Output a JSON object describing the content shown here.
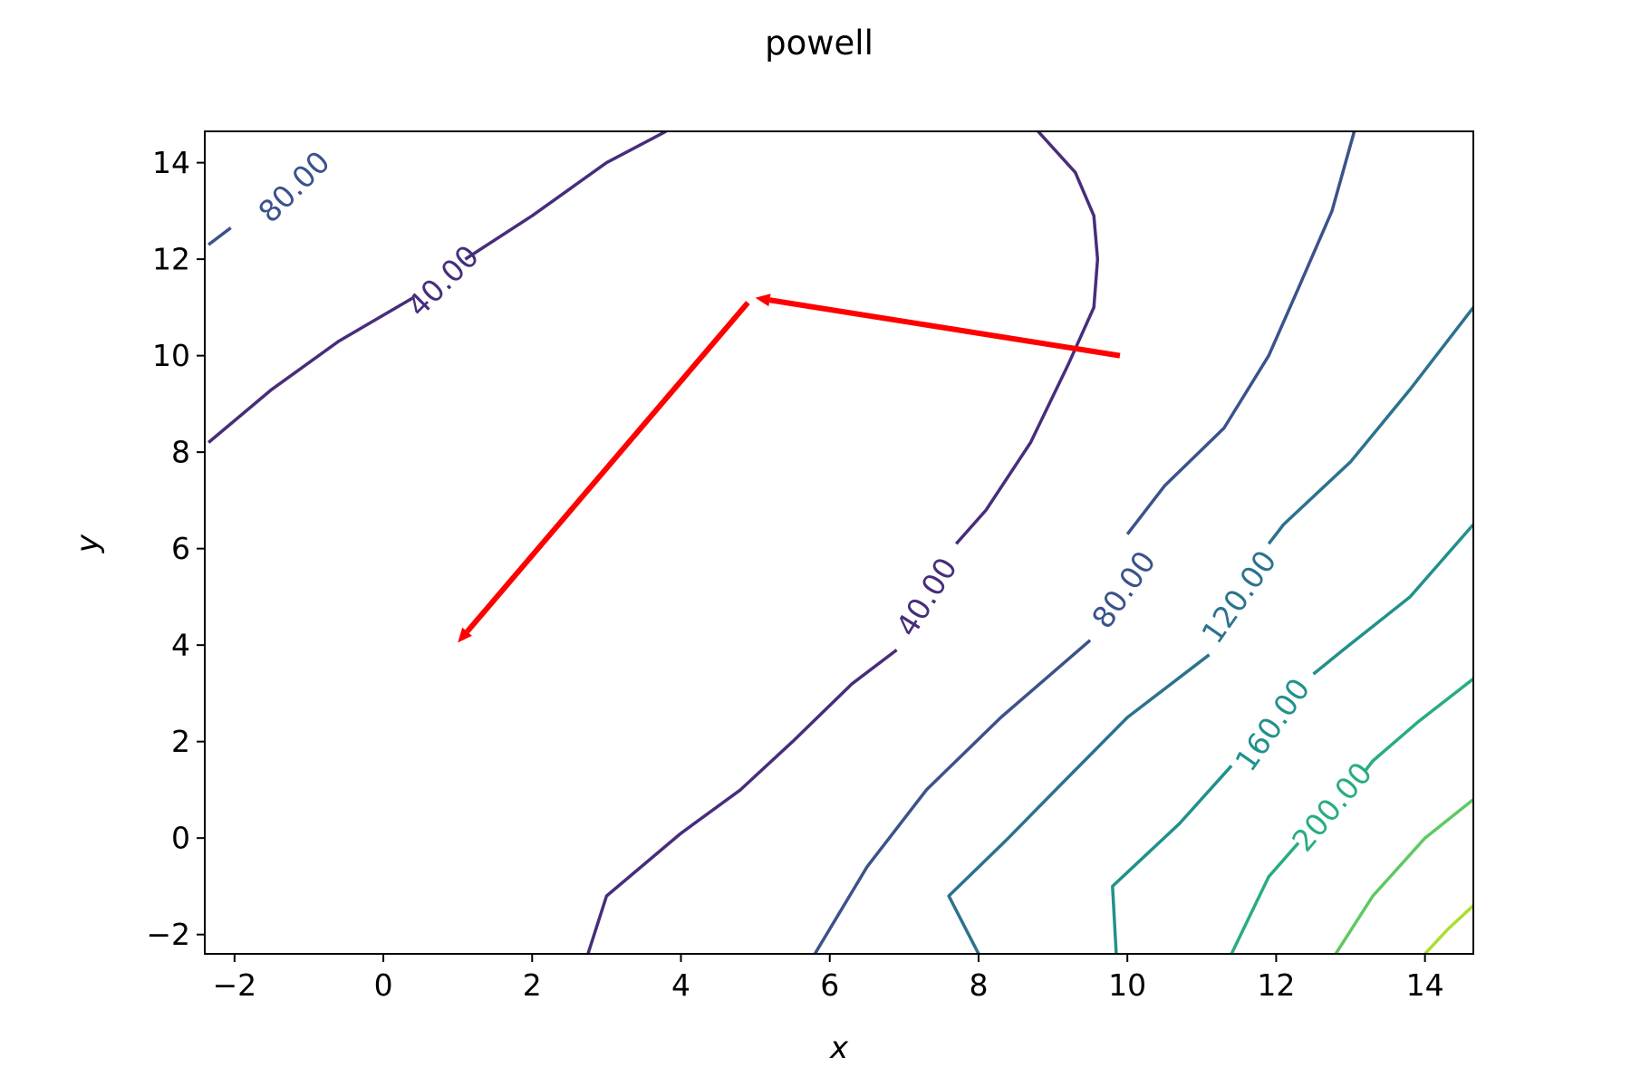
{
  "chart_data": {
    "type": "contour",
    "title": "powell",
    "xlabel": "x",
    "ylabel": "y",
    "xlim": [
      -2.4,
      14.65
    ],
    "ylim": [
      -2.4,
      14.65
    ],
    "xticks": [
      -2,
      0,
      2,
      4,
      6,
      8,
      10,
      12,
      14
    ],
    "yticks": [
      -2,
      0,
      2,
      4,
      6,
      8,
      10,
      12,
      14
    ],
    "colors": {
      "axis": "#000000",
      "arrow": "#ff0000",
      "background": "#ffffff"
    },
    "contours": [
      {
        "level": "40.00",
        "color": "#472d7b",
        "segments": [
          [
            [
              -2.35,
              8.2
            ],
            [
              -1.5,
              9.3
            ],
            [
              -0.6,
              10.3
            ],
            [
              0.4,
              11.2
            ]
          ],
          [
            [
              1.1,
              12.0
            ],
            [
              2.0,
              12.9
            ],
            [
              3.0,
              14.0
            ],
            [
              3.8,
              14.65
            ]
          ],
          [
            [
              8.8,
              14.65
            ],
            [
              9.3,
              13.8
            ],
            [
              9.55,
              12.9
            ],
            [
              9.6,
              12.0
            ],
            [
              9.55,
              11.0
            ],
            [
              9.2,
              9.8
            ],
            [
              8.7,
              8.2
            ],
            [
              8.1,
              6.8
            ],
            [
              7.7,
              6.1
            ]
          ],
          [
            [
              6.9,
              3.9
            ],
            [
              6.3,
              3.2
            ],
            [
              5.5,
              2.0
            ],
            [
              4.8,
              1.0
            ],
            [
              4.0,
              0.1
            ],
            [
              3.0,
              -1.2
            ],
            [
              2.75,
              -2.4
            ]
          ]
        ],
        "labels": [
          {
            "x": 0.8,
            "y": 11.55,
            "text": "40.00",
            "rotation": -45
          },
          {
            "x": 7.3,
            "y": 5.0,
            "text": "40.00",
            "rotation": -58
          }
        ]
      },
      {
        "level": "80.00",
        "color": "#3b528b",
        "segments": [
          [
            [
              -2.35,
              12.3
            ],
            [
              -2.05,
              12.65
            ]
          ],
          [
            [
              13.05,
              14.65
            ],
            [
              12.75,
              13.0
            ],
            [
              12.3,
              11.4
            ],
            [
              11.9,
              10.0
            ],
            [
              11.3,
              8.5
            ],
            [
              10.5,
              7.3
            ],
            [
              10.0,
              6.3
            ]
          ],
          [
            [
              9.5,
              4.1
            ],
            [
              8.3,
              2.5
            ],
            [
              7.3,
              1.0
            ],
            [
              6.5,
              -0.6
            ],
            [
              5.8,
              -2.4
            ]
          ]
        ],
        "labels": [
          {
            "x": -1.2,
            "y": 13.5,
            "text": "80.00",
            "rotation": -45
          },
          {
            "x": 9.95,
            "y": 5.15,
            "text": "80.00",
            "rotation": -55
          }
        ]
      },
      {
        "level": "120.00",
        "color": "#2c728e",
        "segments": [
          [
            [
              14.65,
              11.0
            ],
            [
              13.8,
              9.3
            ],
            [
              13.0,
              7.8
            ],
            [
              12.1,
              6.5
            ],
            [
              11.9,
              6.1
            ]
          ],
          [
            [
              11.1,
              3.8
            ],
            [
              10.0,
              2.5
            ],
            [
              9.1,
              1.1
            ],
            [
              8.4,
              0.0
            ],
            [
              7.6,
              -1.2
            ],
            [
              8.0,
              -2.4
            ]
          ]
        ],
        "labels": [
          {
            "x": 11.5,
            "y": 5.0,
            "text": "120.00",
            "rotation": -55
          }
        ]
      },
      {
        "level": "160.00",
        "color": "#21918c",
        "segments": [
          [
            [
              14.65,
              6.5
            ],
            [
              13.8,
              5.0
            ],
            [
              12.9,
              3.9
            ],
            [
              12.5,
              3.4
            ]
          ],
          [
            [
              11.4,
              1.5
            ],
            [
              10.7,
              0.3
            ],
            [
              9.8,
              -1.0
            ],
            [
              9.85,
              -2.4
            ]
          ]
        ],
        "labels": [
          {
            "x": 11.95,
            "y": 2.35,
            "text": "160.00",
            "rotation": -55
          }
        ]
      },
      {
        "level": "200.00",
        "color": "#27ad81",
        "segments": [
          [
            [
              14.65,
              3.3
            ],
            [
              13.9,
              2.4
            ],
            [
              13.3,
              1.6
            ],
            [
              13.2,
              1.4
            ]
          ],
          [
            [
              12.3,
              -0.1
            ],
            [
              11.9,
              -0.8
            ],
            [
              11.4,
              -2.4
            ]
          ]
        ],
        "labels": [
          {
            "x": 12.75,
            "y": 0.65,
            "text": "200.00",
            "rotation": -50
          }
        ]
      },
      {
        "level": "",
        "color": "#5ec962",
        "segments": [
          [
            [
              14.65,
              0.8
            ],
            [
              14.0,
              0.0
            ],
            [
              13.3,
              -1.2
            ],
            [
              12.8,
              -2.4
            ]
          ]
        ],
        "labels": []
      },
      {
        "level": "",
        "color": "#addc30",
        "segments": [
          [
            [
              14.65,
              -1.4
            ],
            [
              14.3,
              -1.9
            ],
            [
              14.0,
              -2.4
            ]
          ]
        ],
        "labels": []
      }
    ],
    "arrows": [
      {
        "x0": 9.9,
        "y0": 10.0,
        "x1": 5.0,
        "y1": 11.2
      },
      {
        "x0": 4.9,
        "y0": 11.1,
        "x1": 1.0,
        "y1": 4.05
      }
    ]
  }
}
